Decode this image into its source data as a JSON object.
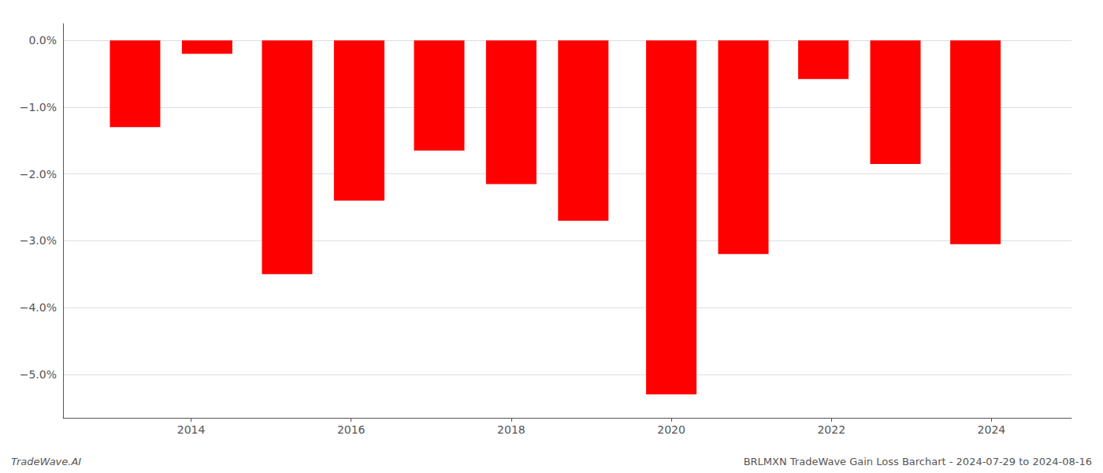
{
  "chart_data": {
    "type": "bar",
    "x": [
      2013.3,
      2014.2,
      2015.2,
      2016.1,
      2017.1,
      2018.0,
      2018.9,
      2020.0,
      2020.9,
      2021.9,
      2022.8,
      2023.8
    ],
    "values": [
      -1.3,
      -0.2,
      -3.5,
      -2.4,
      -1.65,
      -2.15,
      -2.7,
      -5.3,
      -3.2,
      -0.58,
      -1.85,
      -3.05
    ],
    "color": "#ff0000",
    "xlim": [
      2012.4,
      2025.0
    ],
    "xticks": [
      2014,
      2016,
      2018,
      2020,
      2022,
      2024
    ],
    "ylim": [
      -5.65,
      0.25
    ],
    "yticks": [
      {
        "value": 0.0,
        "label": "0.0%"
      },
      {
        "value": -1.0,
        "label": "−1.0%"
      },
      {
        "value": -2.0,
        "label": "−2.0%"
      },
      {
        "value": -3.0,
        "label": "−3.0%"
      },
      {
        "value": -4.0,
        "label": "−4.0%"
      },
      {
        "value": -5.0,
        "label": "−5.0%"
      }
    ],
    "grid": true,
    "annotations": [
      "TradeWave.AI",
      "BRLMXN TradeWave Gain Loss Barchart - 2024-07-29 to 2024-08-16"
    ]
  }
}
